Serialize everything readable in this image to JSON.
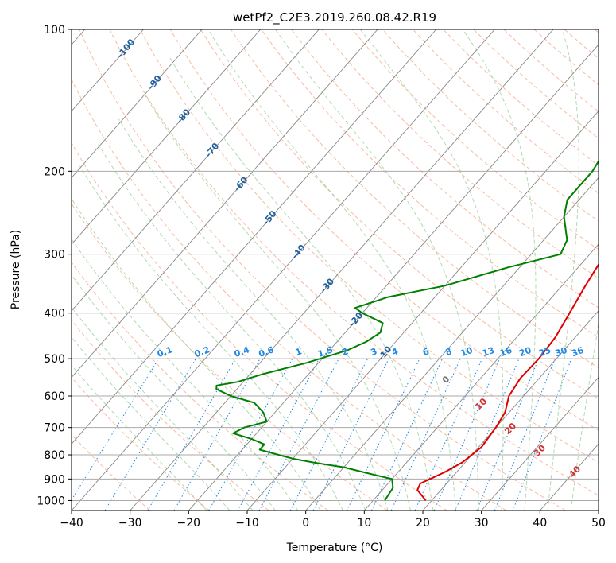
{
  "chart_data": {
    "type": "line",
    "title": "wetPf2_C2E3.2019.260.08.42.R19",
    "xlabel": "Temperature (°C)",
    "ylabel": "Pressure (hPa)",
    "xlim": [
      -40,
      50
    ],
    "ylim": [
      1050,
      100
    ],
    "y_scale": "log",
    "x_ticks": [
      -40,
      -30,
      -20,
      -10,
      0,
      10,
      20,
      30,
      40,
      50
    ],
    "y_ticks": [
      100,
      200,
      300,
      400,
      500,
      600,
      700,
      800,
      900,
      1000
    ],
    "grid": true,
    "series": [
      {
        "color": "#e00000",
        "points": [
          [
            19,
            1000
          ],
          [
            16,
            950
          ],
          [
            15.5,
            920
          ],
          [
            16.5,
            900
          ],
          [
            18,
            870
          ],
          [
            19.5,
            830
          ],
          [
            20.5,
            770
          ],
          [
            20,
            700
          ],
          [
            19.3,
            650
          ],
          [
            17.5,
            600
          ],
          [
            16.8,
            550
          ],
          [
            17,
            500
          ],
          [
            16.6,
            450
          ],
          [
            15.4,
            400
          ],
          [
            14,
            350
          ],
          [
            12.6,
            300
          ],
          [
            10.4,
            250
          ],
          [
            8.5,
            200
          ],
          [
            7.2,
            180
          ],
          [
            7.5,
            170
          ],
          [
            8.8,
            160
          ],
          [
            8.6,
            140
          ],
          [
            8.5,
            120
          ],
          [
            7.5,
            110
          ],
          [
            6.2,
            100
          ]
        ]
      },
      {
        "color": "#008000",
        "points": [
          [
            12,
            1000
          ],
          [
            11.5,
            940
          ],
          [
            10,
            900
          ],
          [
            6,
            880
          ],
          [
            0,
            850
          ],
          [
            -6,
            830
          ],
          [
            -10,
            815
          ],
          [
            -13,
            800
          ],
          [
            -17,
            780
          ],
          [
            -17,
            760
          ],
          [
            -20,
            740
          ],
          [
            -24,
            720
          ],
          [
            -23,
            700
          ],
          [
            -20,
            680
          ],
          [
            -22,
            650
          ],
          [
            -25,
            620
          ],
          [
            -30,
            600
          ],
          [
            -33.5,
            580
          ],
          [
            -34,
            570
          ],
          [
            -31,
            560
          ],
          [
            -28,
            540
          ],
          [
            -22,
            510
          ],
          [
            -17,
            480
          ],
          [
            -15,
            460
          ],
          [
            -14,
            440
          ],
          [
            -15,
            420
          ],
          [
            -20,
            400
          ],
          [
            -22,
            390
          ],
          [
            -18,
            370
          ],
          [
            -10,
            350
          ],
          [
            -2,
            320
          ],
          [
            5,
            300
          ],
          [
            4,
            280
          ],
          [
            0,
            250
          ],
          [
            -2,
            230
          ],
          [
            -2,
            200
          ],
          [
            -3,
            180
          ],
          [
            -4,
            160
          ],
          [
            -2,
            150
          ],
          [
            0,
            140
          ],
          [
            2.5,
            120
          ],
          [
            5.5,
            100
          ]
        ]
      }
    ],
    "dry_adiabat_labels": [
      -100,
      -90,
      -80,
      -70,
      -60,
      -50,
      -40,
      -30,
      -20,
      -10
    ],
    "mixing_ratio_labels": [
      "0.1",
      "0.2",
      "0.4",
      "0.6",
      "1",
      "1.5",
      "2",
      "3",
      "4",
      "6",
      "8",
      "10",
      "13",
      "16",
      "20",
      "25",
      "30",
      "36"
    ],
    "moist_adiabat_labels": [
      "0",
      "10",
      "20",
      "30",
      "40"
    ],
    "colors": {
      "dry_adiabat": "#f4a582",
      "moist_adiabat": "#7fbf7f",
      "mixing_ratio": "#1e88e5",
      "isotherm": "#888888",
      "isobar": "#aaaaaa"
    }
  }
}
